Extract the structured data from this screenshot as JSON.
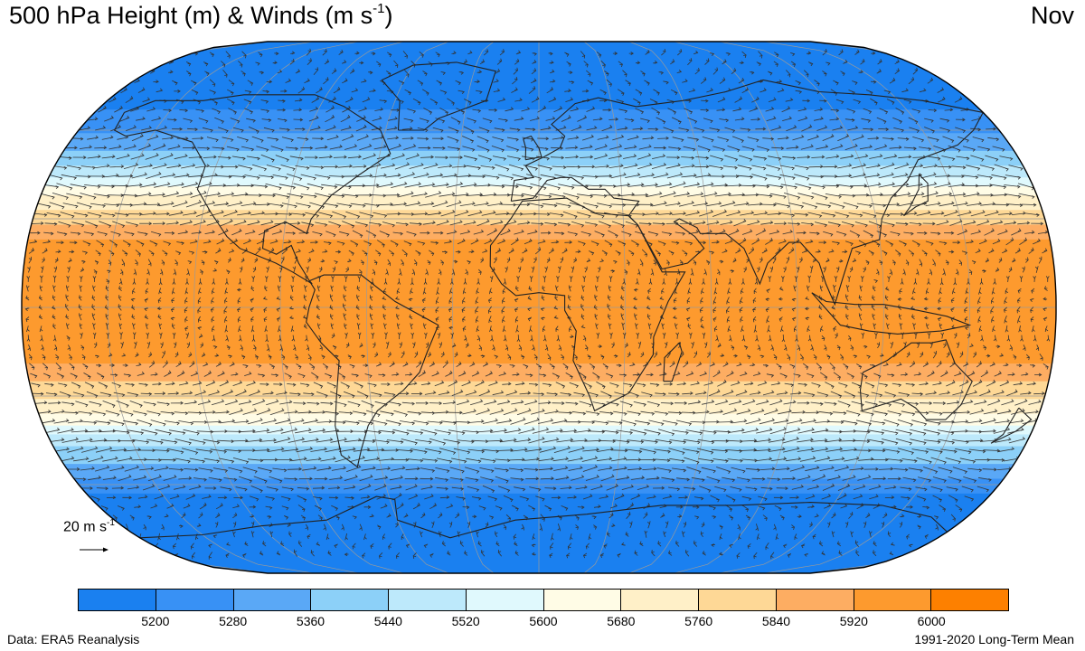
{
  "title": {
    "main": "500 hPa Height (m) & Winds (m s",
    "sup": "-1",
    "close": ")"
  },
  "month": "Nov",
  "reference_vector": {
    "value_text": "20 m s",
    "sup": "-1",
    "speed": 20
  },
  "colorbar": {
    "colors": [
      "#1a80f0",
      "#3891f5",
      "#5aa8f6",
      "#8cd0f8",
      "#bde9fb",
      "#e0f9fd",
      "#fffce6",
      "#fff0c8",
      "#fed896",
      "#fdad62",
      "#fd9a2e",
      "#fd8000"
    ],
    "tick_labels": [
      "5200",
      "5280",
      "5360",
      "5440",
      "5520",
      "5600",
      "5680",
      "5760",
      "5840",
      "5920",
      "6000"
    ]
  },
  "source": "Data: ERA5 Reanalysis",
  "period": "1991-2020 Long-Term Mean",
  "map": {
    "projection": "Robinson-like global",
    "fill_field": "500 hPa geopotential height",
    "band_levels_by_latitude": [
      {
        "lat": 90,
        "level": 0
      },
      {
        "lat": 72,
        "level": 0
      },
      {
        "lat": 62,
        "level": 1
      },
      {
        "lat": 56,
        "level": 2
      },
      {
        "lat": 50,
        "level": 3
      },
      {
        "lat": 45,
        "level": 4
      },
      {
        "lat": 40,
        "level": 6
      },
      {
        "lat": 35,
        "level": 7
      },
      {
        "lat": 30,
        "level": 8
      },
      {
        "lat": 25,
        "level": 9
      },
      {
        "lat": 20,
        "level": 10
      },
      {
        "lat": -15,
        "level": 10
      },
      {
        "lat": -22,
        "level": 9
      },
      {
        "lat": -28,
        "level": 8
      },
      {
        "lat": -33,
        "level": 7
      },
      {
        "lat": -38,
        "level": 6
      },
      {
        "lat": -44,
        "level": 4
      },
      {
        "lat": -50,
        "level": 3
      },
      {
        "lat": -55,
        "level": 2
      },
      {
        "lat": -60,
        "level": 1
      },
      {
        "lat": -66,
        "level": 0
      },
      {
        "lat": -90,
        "level": 0
      }
    ],
    "wind_profile_by_latitude": [
      {
        "lat": 80,
        "u": 4,
        "v": 0
      },
      {
        "lat": 60,
        "u": 10,
        "v": 0
      },
      {
        "lat": 40,
        "u": 16,
        "v": 0
      },
      {
        "lat": 30,
        "u": 13,
        "v": 0
      },
      {
        "lat": 15,
        "u": 2,
        "v": 0
      },
      {
        "lat": 0,
        "u": -3,
        "v": 0
      },
      {
        "lat": -15,
        "u": 2,
        "v": 0
      },
      {
        "lat": -30,
        "u": 11,
        "v": 0
      },
      {
        "lat": -45,
        "u": 17,
        "v": 0
      },
      {
        "lat": -60,
        "u": 12,
        "v": 0
      },
      {
        "lat": -80,
        "u": -3,
        "v": 0
      }
    ]
  }
}
